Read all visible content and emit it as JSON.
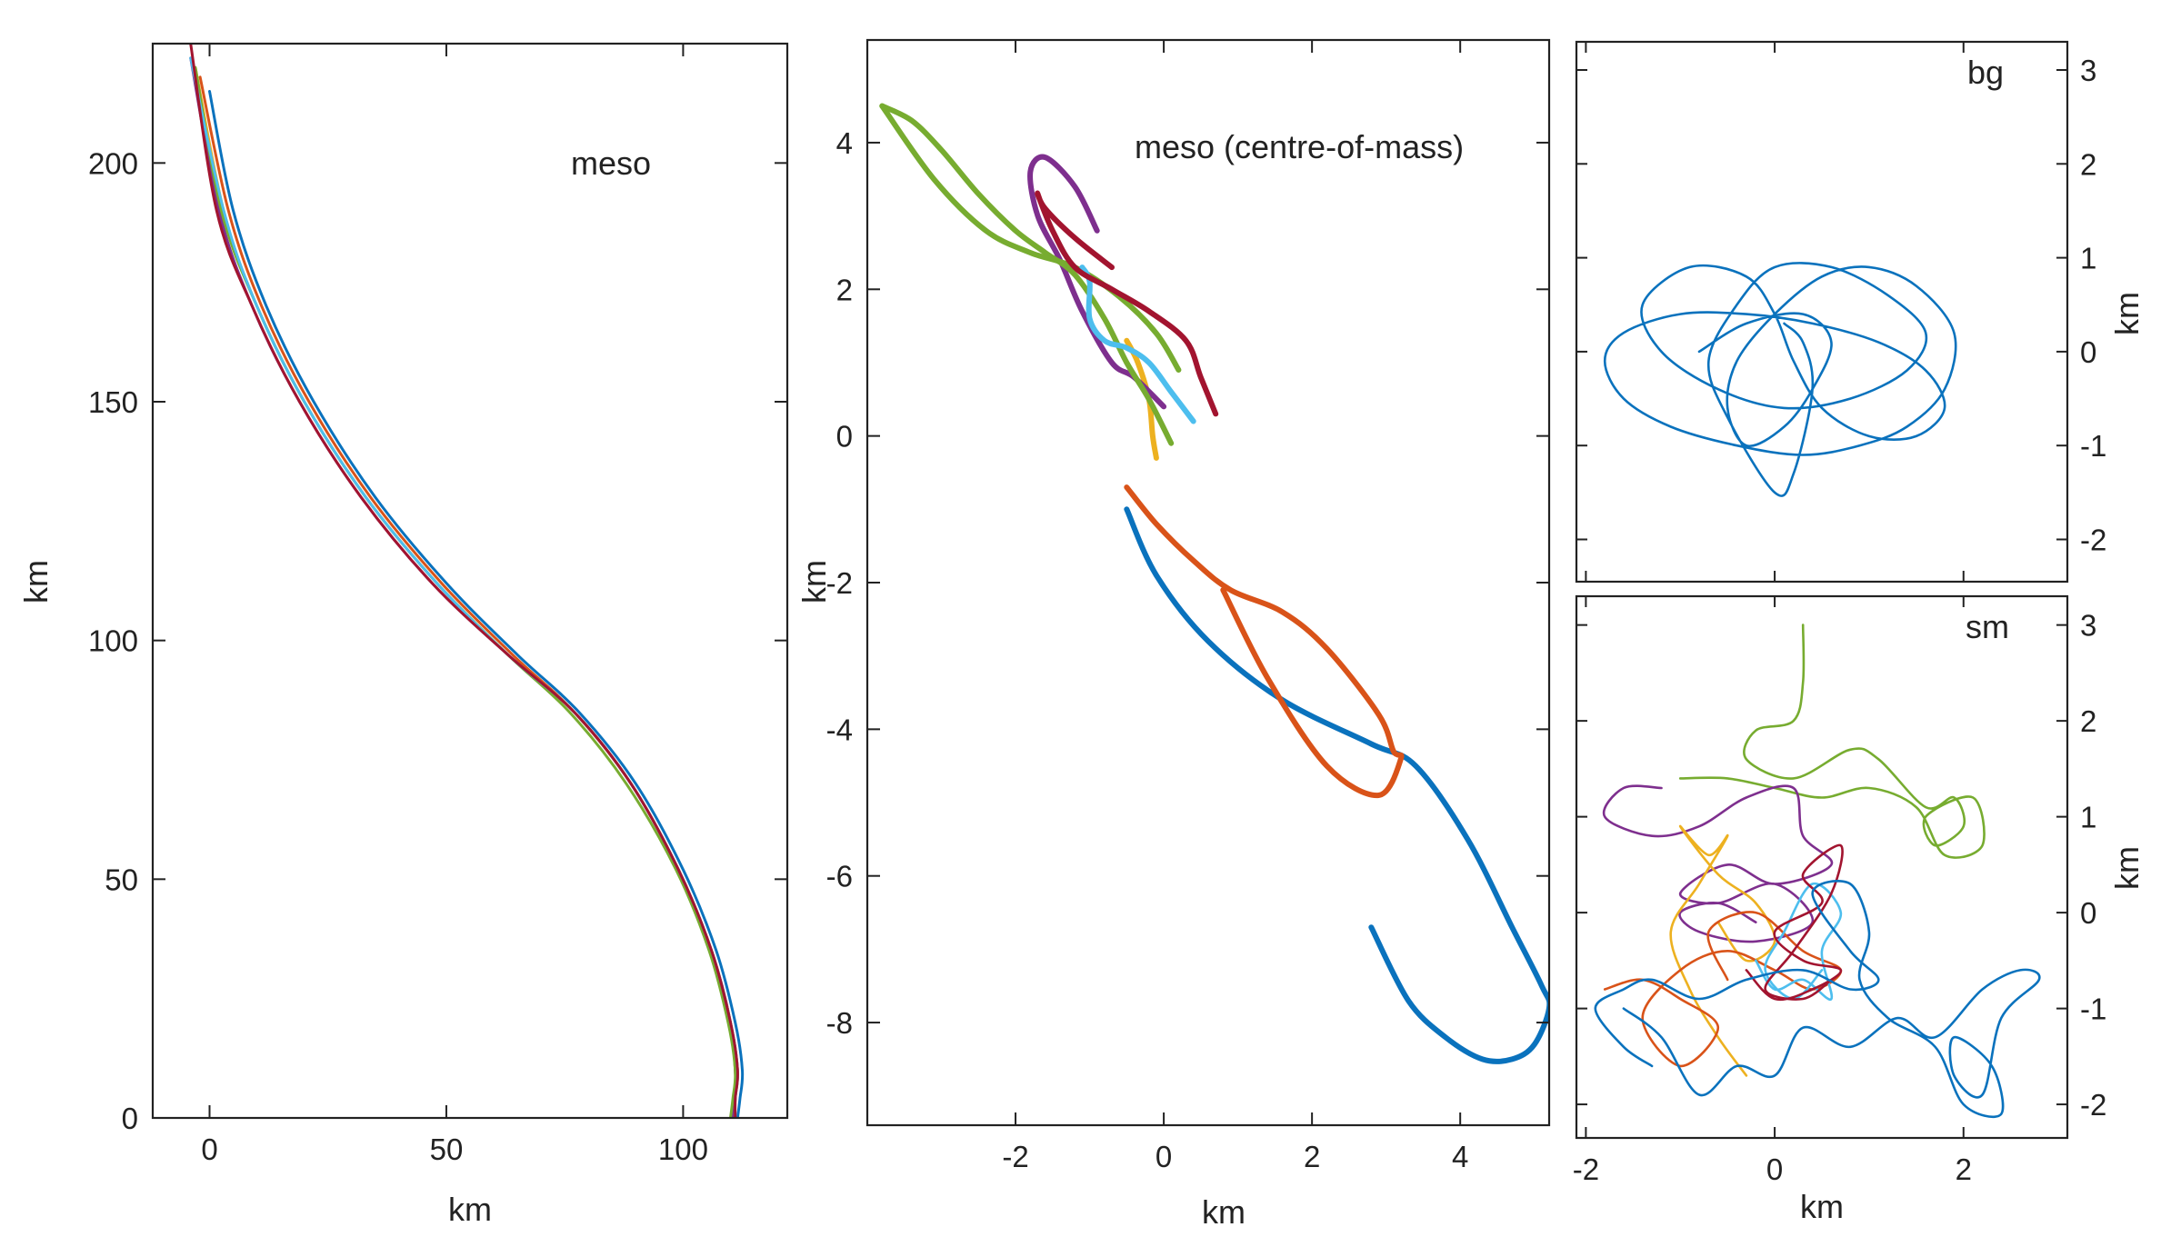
{
  "chart_data": [
    {
      "id": "meso",
      "type": "line",
      "title": "meso",
      "xlabel": "km",
      "ylabel": "km",
      "xlim": [
        -12,
        122
      ],
      "ylim": [
        0,
        225
      ],
      "xticks": [
        0,
        50,
        100
      ],
      "yticks": [
        0,
        50,
        100,
        150,
        200
      ],
      "series": [
        {
          "name": "blue",
          "color": "#0a72bd",
          "x": [
            0,
            5,
            12,
            22,
            35,
            50,
            65,
            78,
            90,
            100,
            107,
            111,
            112.5,
            112,
            111.5
          ],
          "y": [
            215,
            190,
            170,
            150,
            130,
            112,
            97,
            85,
            70,
            52,
            35,
            20,
            10,
            4,
            0
          ]
        },
        {
          "name": "orange",
          "color": "#d95319",
          "x": [
            -2,
            4,
            11,
            21,
            34,
            49,
            64,
            77,
            89,
            99,
            106,
            110,
            111.5,
            111,
            111
          ],
          "y": [
            218,
            190,
            170,
            150,
            130,
            112,
            97,
            85,
            70,
            52,
            35,
            20,
            10,
            4,
            0
          ]
        },
        {
          "name": "yellow",
          "color": "#edb120",
          "x": [
            -3,
            3,
            10,
            20,
            33,
            48,
            63,
            77,
            89,
            99,
            106,
            110,
            111,
            111,
            110.5
          ],
          "y": [
            220,
            190,
            170,
            150,
            130,
            112,
            97,
            85,
            70,
            52,
            35,
            20,
            10,
            4,
            0
          ]
        },
        {
          "name": "purple",
          "color": "#7e2f8e",
          "x": [
            -4,
            2,
            9,
            19,
            32,
            47,
            63,
            77,
            89,
            99,
            106,
            110,
            111,
            111,
            110.5
          ],
          "y": [
            222,
            190,
            170,
            150,
            130,
            112,
            97,
            85,
            70,
            52,
            35,
            20,
            10,
            4,
            0
          ]
        },
        {
          "name": "green",
          "color": "#77ac30",
          "x": [
            -3,
            2.5,
            10,
            20,
            33,
            48,
            63,
            76,
            88,
            98.5,
            105.5,
            109.5,
            111,
            110.5,
            110
          ],
          "y": [
            220,
            190,
            170,
            150,
            130,
            112,
            97,
            85,
            70,
            52,
            35,
            20,
            10,
            4,
            0
          ]
        },
        {
          "name": "cyan",
          "color": "#4dbeee",
          "x": [
            -4,
            3,
            10,
            20,
            33,
            48,
            63,
            77,
            89,
            99,
            106,
            110,
            111.5,
            111,
            111
          ],
          "y": [
            222,
            190,
            170,
            150,
            130,
            112,
            97,
            85,
            70,
            52,
            35,
            20,
            10,
            4,
            0
          ]
        },
        {
          "name": "red",
          "color": "#a2142f",
          "x": [
            -4,
            1.5,
            9,
            19,
            32,
            47,
            63,
            77,
            89,
            99,
            106,
            110,
            111.5,
            111,
            111
          ],
          "y": [
            225,
            190,
            170,
            150,
            130,
            112,
            97,
            85,
            70,
            52,
            35,
            20,
            10,
            4,
            0
          ]
        }
      ]
    },
    {
      "id": "meso-com",
      "type": "line",
      "title": "meso (centre-of-mass)",
      "xlabel": "km",
      "ylabel": "km",
      "xlim": [
        -4,
        5.2
      ],
      "ylim": [
        -9.4,
        5.4
      ],
      "xticks": [
        -2,
        0,
        2,
        4
      ],
      "yticks": [
        -8,
        -6,
        -4,
        -2,
        0,
        2,
        4
      ],
      "series": [
        {
          "name": "blue",
          "color": "#0a72bd",
          "x": [
            -0.5,
            -0.1,
            0.6,
            1.6,
            2.8,
            3.4,
            4.1,
            4.7,
            5.1,
            5.2,
            5.0,
            4.7,
            4.3,
            3.8,
            3.3,
            2.8
          ],
          "y": [
            -1.0,
            -1.9,
            -2.8,
            -3.6,
            -4.2,
            -4.5,
            -5.5,
            -6.7,
            -7.5,
            -7.8,
            -8.3,
            -8.5,
            -8.5,
            -8.2,
            -7.7,
            -6.7
          ]
        },
        {
          "name": "orange",
          "color": "#d95319",
          "x": [
            -0.5,
            -0.1,
            0.4,
            0.9,
            1.6,
            2.2,
            2.9,
            3.1,
            3.2,
            2.9,
            2.2,
            1.4,
            0.8
          ],
          "y": [
            -0.7,
            -1.2,
            -1.7,
            -2.1,
            -2.4,
            -2.9,
            -3.8,
            -4.3,
            -4.4,
            -4.9,
            -4.5,
            -3.3,
            -2.1
          ]
        },
        {
          "name": "yellow",
          "color": "#edb120",
          "x": [
            -0.5,
            -0.35,
            -0.2,
            -0.15,
            -0.1
          ],
          "y": [
            1.3,
            1.0,
            0.5,
            0.0,
            -0.3
          ]
        },
        {
          "name": "purple",
          "color": "#7e2f8e",
          "x": [
            -0.9,
            -1.2,
            -1.6,
            -1.8,
            -1.7,
            -1.4,
            -1.1,
            -0.7,
            -0.4,
            0.0
          ],
          "y": [
            2.8,
            3.4,
            3.8,
            3.6,
            3.0,
            2.4,
            1.7,
            1.0,
            0.8,
            0.4
          ]
        },
        {
          "name": "green",
          "color": "#77ac30",
          "x": [
            -3.8,
            -3.4,
            -3.0,
            -2.5,
            -2.0,
            -1.6,
            -1.2,
            -0.8,
            -0.5,
            -0.2,
            0.1
          ],
          "y": [
            4.5,
            4.3,
            3.9,
            3.3,
            2.8,
            2.5,
            2.2,
            1.6,
            1.0,
            0.5,
            -0.1
          ]
        },
        {
          "name": "green-2",
          "color": "#77ac30",
          "x": [
            -3.8,
            -3.1,
            -2.4,
            -1.8,
            -1.2,
            -0.6,
            -0.1,
            0.2
          ],
          "y": [
            4.5,
            3.5,
            2.8,
            2.5,
            2.3,
            1.9,
            1.4,
            0.9
          ]
        },
        {
          "name": "cyan",
          "color": "#4dbeee",
          "x": [
            -1.1,
            -1.0,
            -1.0,
            -0.8,
            -0.5,
            -0.2,
            0.1,
            0.4
          ],
          "y": [
            2.3,
            2.1,
            1.6,
            1.3,
            1.2,
            1.0,
            0.6,
            0.2
          ]
        },
        {
          "name": "red",
          "color": "#a2142f",
          "x": [
            -0.7,
            -1.2,
            -1.6,
            -1.7,
            -1.5,
            -1.2,
            -0.7,
            -0.2,
            0.3,
            0.5,
            0.7
          ],
          "y": [
            2.3,
            2.7,
            3.1,
            3.3,
            2.8,
            2.3,
            2.0,
            1.7,
            1.3,
            0.8,
            0.3
          ]
        }
      ]
    },
    {
      "id": "bg",
      "type": "line",
      "title": "bg",
      "xlabel": "",
      "ylabel": "km",
      "xlim": [
        -2.1,
        3.1
      ],
      "ylim": [
        -2.45,
        3.3
      ],
      "xticks": [
        -2,
        0,
        2
      ],
      "yticks": [
        -2,
        -1,
        0,
        1,
        2,
        3
      ],
      "series": [
        {
          "name": "blue",
          "color": "#0a72bd",
          "x": [
            -0.8,
            -0.3,
            0.3,
            0.6,
            0.4,
            0.1,
            -0.3,
            -0.5,
            -0.4,
            0.0,
            0.5,
            1.0,
            1.5,
            1.9,
            1.8,
            1.4,
            0.9,
            0.3,
            -0.4,
            -1.1,
            -1.6,
            -1.8,
            -1.6,
            -1.0,
            -0.3,
            0.4,
            1.1,
            1.6,
            1.8,
            1.5,
            1.0,
            0.5,
            0.2,
            0.0,
            -0.3,
            -0.9,
            -1.4,
            -1.2,
            -0.6,
            0.1,
            0.8,
            1.4,
            1.6,
            1.2,
            0.6,
            0.0,
            -0.4,
            -0.7,
            -0.5,
            0.0,
            0.2,
            0.4,
            0.3,
            0.1
          ],
          "y": [
            0.0,
            0.3,
            0.4,
            0.1,
            -0.4,
            -0.8,
            -1.0,
            -0.6,
            -0.1,
            0.4,
            0.8,
            0.9,
            0.7,
            0.2,
            -0.4,
            -0.8,
            -1.0,
            -1.1,
            -1.0,
            -0.8,
            -0.5,
            -0.1,
            0.2,
            0.4,
            0.4,
            0.3,
            0.1,
            -0.2,
            -0.6,
            -0.9,
            -0.9,
            -0.6,
            -0.1,
            0.4,
            0.8,
            0.9,
            0.5,
            0.0,
            -0.4,
            -0.6,
            -0.5,
            -0.2,
            0.2,
            0.6,
            0.9,
            0.9,
            0.5,
            -0.1,
            -0.7,
            -1.5,
            -1.3,
            -0.4,
            0.1,
            0.3
          ]
        }
      ]
    },
    {
      "id": "sm",
      "type": "line",
      "title": "sm",
      "xlabel": "km",
      "ylabel": "km",
      "xlim": [
        -2.1,
        3.1
      ],
      "ylim": [
        -2.35,
        3.3
      ],
      "xticks": [
        -2,
        0,
        2
      ],
      "yticks": [
        -2,
        -1,
        0,
        1,
        2,
        3
      ],
      "series": [
        {
          "name": "green",
          "color": "#77ac30",
          "x": [
            0.3,
            0.3,
            0.2,
            -0.2,
            -0.3,
            0.2,
            0.8,
            1.1,
            1.6,
            1.9,
            2.0,
            1.7,
            1.6,
            2.1,
            2.2,
            1.8,
            1.5,
            1.0,
            0.5,
            0.0,
            -0.5,
            -1.0
          ],
          "y": [
            3.0,
            2.4,
            2.0,
            1.9,
            1.6,
            1.4,
            1.7,
            1.6,
            1.1,
            1.2,
            0.9,
            0.7,
            1.0,
            1.2,
            0.7,
            0.6,
            1.1,
            1.3,
            1.2,
            1.3,
            1.4,
            1.4
          ]
        },
        {
          "name": "purple",
          "color": "#7e2f8e",
          "x": [
            -1.2,
            -1.6,
            -1.8,
            -1.3,
            -0.8,
            -0.3,
            0.2,
            0.3,
            0.6,
            0.0,
            -0.5,
            -1.0,
            -0.6,
            0.0,
            0.4,
            -0.2,
            -0.8,
            -1.0,
            -0.6,
            -0.2
          ],
          "y": [
            1.3,
            1.3,
            1.0,
            0.8,
            0.9,
            1.2,
            1.3,
            0.8,
            0.5,
            0.3,
            0.5,
            0.2,
            0.1,
            0.3,
            -0.1,
            -0.3,
            -0.2,
            0.0,
            0.1,
            -0.1
          ]
        },
        {
          "name": "yellow",
          "color": "#edb120",
          "x": [
            -0.3,
            -0.6,
            -0.9,
            -1.1,
            -0.8,
            -0.5,
            -0.7,
            -1.0,
            -0.6,
            -0.2,
            0.0,
            -0.3,
            -0.6
          ],
          "y": [
            -1.7,
            -1.3,
            -0.8,
            -0.2,
            0.3,
            0.8,
            0.6,
            0.9,
            0.4,
            0.1,
            -0.3,
            -0.5,
            -0.1
          ]
        },
        {
          "name": "orange",
          "color": "#d95319",
          "x": [
            -1.8,
            -1.4,
            -1.0,
            -0.6,
            -1.0,
            -1.4,
            -1.0,
            -0.5,
            0.0,
            0.4,
            0.7,
            0.3,
            -0.2,
            -0.7,
            -0.5
          ],
          "y": [
            -0.8,
            -0.7,
            -0.9,
            -1.2,
            -1.6,
            -1.1,
            -0.6,
            -0.4,
            -0.6,
            -0.8,
            -0.6,
            -0.4,
            0.0,
            -0.2,
            -0.7
          ]
        },
        {
          "name": "cyan",
          "color": "#4dbeee",
          "x": [
            -0.2,
            0.0,
            0.3,
            0.6,
            0.5,
            0.7,
            0.4,
            0.1,
            -0.1,
            0.2,
            0.5
          ],
          "y": [
            -0.5,
            -0.8,
            -0.7,
            -0.9,
            -0.4,
            0.0,
            0.3,
            -0.2,
            -0.6,
            -0.9,
            -0.6
          ]
        },
        {
          "name": "red",
          "color": "#a2142f",
          "x": [
            -0.3,
            0.0,
            0.4,
            0.7,
            0.3,
            0.0,
            0.5,
            0.3,
            0.7,
            0.6,
            0.2,
            -0.1,
            0.3,
            0.6
          ],
          "y": [
            -0.6,
            -0.9,
            -0.8,
            -0.6,
            -0.5,
            -0.2,
            0.1,
            0.4,
            0.7,
            0.2,
            -0.4,
            -0.8,
            -0.9,
            -0.7
          ]
        },
        {
          "name": "blue",
          "color": "#0a72bd",
          "x": [
            -1.6,
            -1.2,
            -0.8,
            -0.4,
            0.0,
            0.3,
            0.8,
            1.3,
            1.7,
            2.2,
            2.6,
            2.8,
            2.4,
            2.2,
            1.9,
            1.9,
            2.3,
            2.4,
            2.0,
            1.7,
            1.2,
            0.9,
            1.0,
            0.8,
            0.4,
            0.8,
            1.1,
            0.8,
            0.3,
            -0.3,
            -0.8,
            -1.3,
            -1.6,
            -1.9,
            -1.6,
            -1.3
          ],
          "y": [
            -1.0,
            -1.3,
            -1.9,
            -1.6,
            -1.7,
            -1.2,
            -1.4,
            -1.1,
            -1.3,
            -0.8,
            -0.6,
            -0.7,
            -1.1,
            -1.9,
            -1.7,
            -1.3,
            -1.6,
            -2.1,
            -2.0,
            -1.4,
            -1.1,
            -0.7,
            -0.2,
            0.3,
            0.2,
            -0.4,
            -0.7,
            -0.8,
            -0.6,
            -0.7,
            -0.9,
            -0.7,
            -0.8,
            -1.0,
            -1.4,
            -1.6
          ]
        }
      ]
    }
  ]
}
